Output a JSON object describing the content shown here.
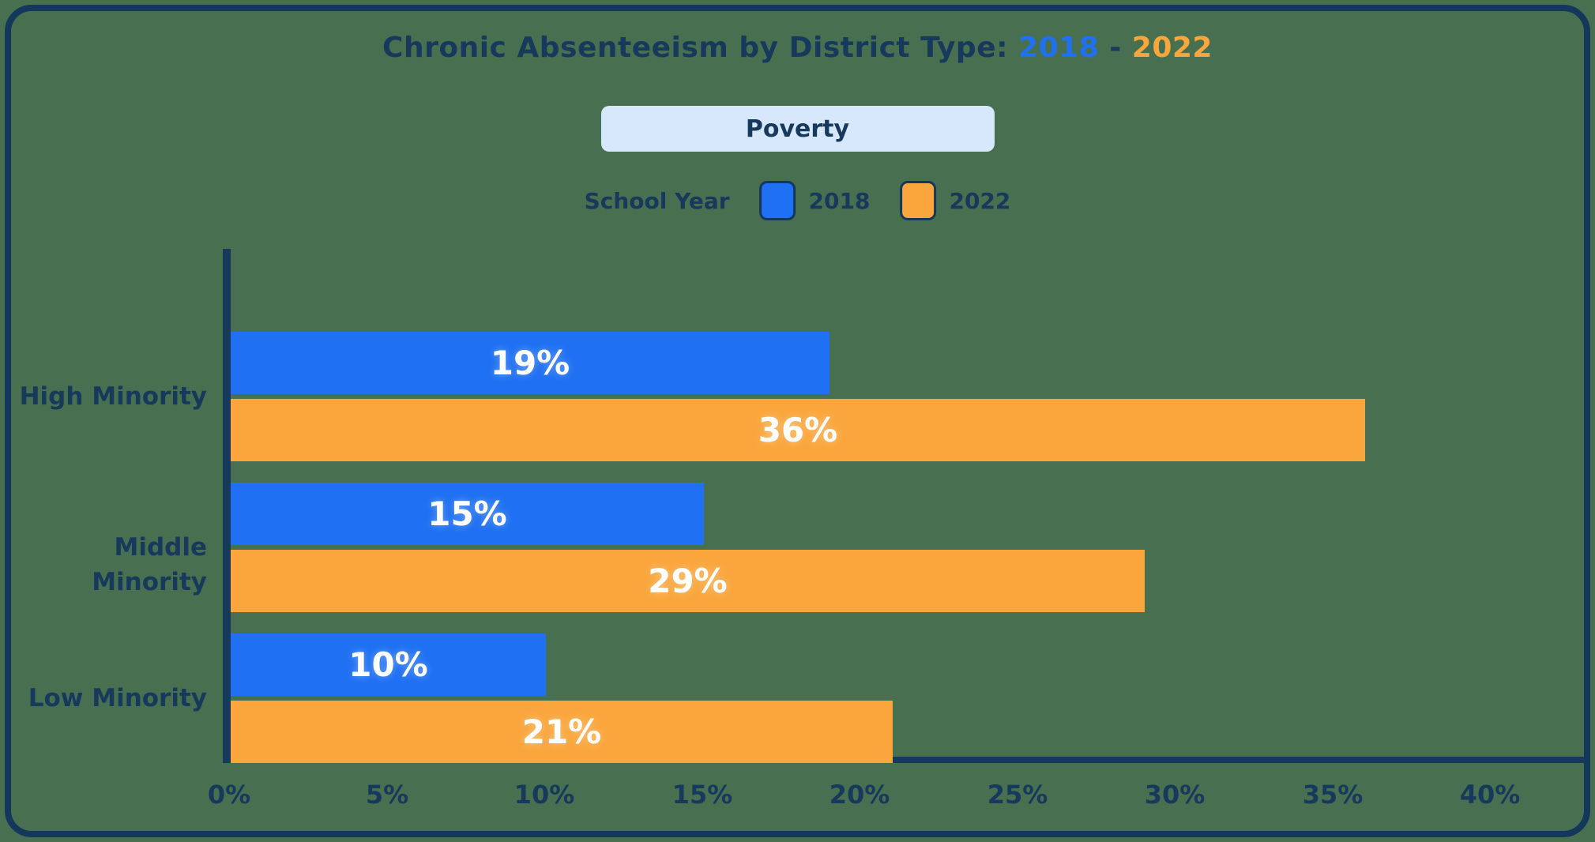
{
  "page": {
    "background_color": "#487050",
    "card_border_color": "#14375c",
    "navy_text_color": "#17395c"
  },
  "title": {
    "prefix": "Chronic Absenteeism by District Type: ",
    "year_start": "2018",
    "separator": " - ",
    "year_end": "2022",
    "year_start_color": "#1f70f2",
    "year_end_color": "#faa63c"
  },
  "filter_button": {
    "label": "Poverty",
    "background_color": "#d7e7fc"
  },
  "legend": {
    "title": "School Year",
    "items": [
      {
        "label": "2018",
        "color": "#1f70f2"
      },
      {
        "label": "2022",
        "color": "#faa63c"
      }
    ]
  },
  "chart_data": {
    "type": "bar",
    "orientation": "horizontal",
    "title": "Chronic Absenteeism by District Type: 2018 - 2022",
    "categories": [
      "High Minority",
      "Middle Minority",
      "Low Minority"
    ],
    "series": [
      {
        "name": "2018",
        "color": "#1f70f2",
        "values": [
          19,
          15,
          10
        ]
      },
      {
        "name": "2022",
        "color": "#faa63c",
        "values": [
          36,
          29,
          21
        ]
      }
    ],
    "value_suffix": "%",
    "x_ticks": [
      "0%",
      "5%",
      "10%",
      "15%",
      "20%",
      "25%",
      "30%",
      "35%",
      "40%"
    ],
    "xlim": [
      0,
      40
    ],
    "grid": false,
    "legend_position": "top",
    "bar_labels_inside": true,
    "bar_label_color": "#ffffff"
  }
}
